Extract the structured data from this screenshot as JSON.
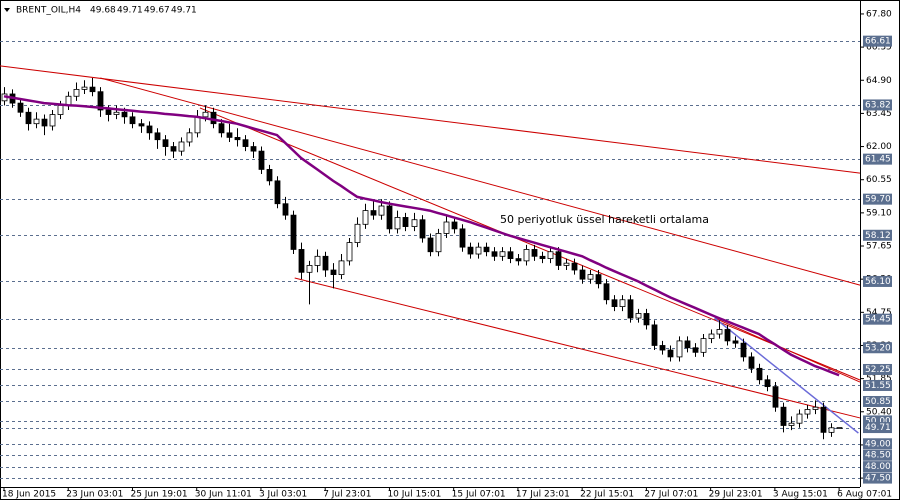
{
  "chart_data": {
    "type": "candlestick",
    "symbol": "BRENT_OIL,H4",
    "annotation": "50 periyotluk üssel hareketli ortalama",
    "ylim": [
      47.11,
      68.41
    ],
    "yticks": [
      {
        "value": 67.8,
        "label": "67.80"
      },
      {
        "value": 66.35,
        "label": "66.35"
      },
      {
        "value": 64.9,
        "label": "64.90"
      },
      {
        "value": 63.45,
        "label": "63.45"
      },
      {
        "value": 62,
        "label": "62.00"
      },
      {
        "value": 60.55,
        "label": "60.55"
      },
      {
        "value": 59.1,
        "label": "59.10"
      },
      {
        "value": 57.65,
        "label": "57.65"
      },
      {
        "value": 56.2,
        "label": "56.20"
      },
      {
        "value": 54.75,
        "label": "54.75"
      },
      {
        "value": 53.3,
        "label": "53.30"
      },
      {
        "value": 51.85,
        "label": "51.85"
      },
      {
        "value": 50.4,
        "label": "50.40"
      },
      {
        "value": 48.95,
        "label": "48.95"
      },
      {
        "value": 47.5,
        "label": "47.50"
      }
    ],
    "levels": [
      {
        "value": 66.61,
        "label": "66.61"
      },
      {
        "value": 63.82,
        "label": "63.82"
      },
      {
        "value": 61.45,
        "label": "61.45"
      },
      {
        "value": 59.7,
        "label": "59.70"
      },
      {
        "value": 58.12,
        "label": "58.12"
      },
      {
        "value": 56.1,
        "label": "56.10"
      },
      {
        "value": 54.45,
        "label": "54.45"
      },
      {
        "value": 53.2,
        "label": "53.20"
      },
      {
        "value": 52.25,
        "label": "52.25"
      },
      {
        "value": 51.55,
        "label": "51.55"
      },
      {
        "value": 50.85,
        "label": "50.85"
      },
      {
        "value": 50,
        "label": "50.00"
      },
      {
        "value": 49.71,
        "label": "49.71"
      },
      {
        "value": 49,
        "label": "49.00"
      },
      {
        "value": 48.5,
        "label": "48.50"
      },
      {
        "value": 48,
        "label": "48.00"
      },
      {
        "value": 47.5,
        "label": "47.50"
      }
    ],
    "level_color": "#5b6f8f",
    "bull_color": "#ffffff",
    "bear_color": "#000000",
    "categories": [
      "18 Jun 2015",
      null,
      null,
      null,
      null,
      null,
      null,
      null,
      "23 Jun 03:01",
      null,
      null,
      null,
      null,
      null,
      null,
      null,
      "25 Jun 19:01",
      null,
      null,
      null,
      null,
      null,
      null,
      null,
      "30 Jun 11:01",
      null,
      null,
      null,
      null,
      null,
      null,
      null,
      "3 Jul 03:01",
      null,
      null,
      null,
      null,
      null,
      null,
      null,
      "7 Jul 23:01",
      null,
      null,
      null,
      null,
      null,
      null,
      null,
      "10 Jul 15:01",
      null,
      null,
      null,
      null,
      null,
      null,
      null,
      "15 Jul 07:01",
      null,
      null,
      null,
      null,
      null,
      null,
      null,
      "17 Jul 23:01",
      null,
      null,
      null,
      null,
      null,
      null,
      null,
      "22 Jul 15:01",
      null,
      null,
      null,
      null,
      null,
      null,
      null,
      "27 Jul 07:01",
      null,
      null,
      null,
      null,
      null,
      null,
      null,
      "29 Jul 23:01",
      null,
      null,
      null,
      null,
      null,
      null,
      null,
      "3 Aug 15:01",
      null,
      null,
      null,
      null,
      null,
      null,
      null,
      "6 Aug 07:01"
    ],
    "ohlc": [
      [
        64.0,
        64.6,
        63.8,
        64.3
      ],
      [
        64.3,
        64.5,
        63.7,
        63.9
      ],
      [
        63.9,
        64.1,
        63.3,
        63.5
      ],
      [
        63.5,
        63.7,
        62.7,
        63.0
      ],
      [
        63.0,
        63.5,
        62.8,
        63.2
      ],
      [
        63.2,
        63.4,
        62.5,
        62.9
      ],
      [
        62.9,
        63.6,
        62.7,
        63.4
      ],
      [
        63.4,
        64.0,
        63.2,
        63.8
      ],
      [
        63.8,
        64.4,
        63.6,
        64.2
      ],
      [
        64.2,
        64.8,
        64.0,
        64.5
      ],
      [
        64.5,
        64.9,
        64.3,
        64.6
      ],
      [
        64.6,
        65.0,
        64.2,
        64.4
      ],
      [
        64.4,
        64.6,
        63.3,
        63.6
      ],
      [
        63.6,
        63.8,
        63.1,
        63.4
      ],
      [
        63.4,
        63.8,
        63.2,
        63.5
      ],
      [
        63.5,
        63.7,
        63.0,
        63.3
      ],
      [
        63.3,
        63.5,
        62.8,
        63.0
      ],
      [
        63.0,
        63.2,
        62.6,
        62.9
      ],
      [
        62.9,
        63.1,
        62.3,
        62.6
      ],
      [
        62.6,
        62.8,
        61.9,
        62.3
      ],
      [
        62.3,
        62.5,
        61.6,
        62.0
      ],
      [
        62.0,
        62.2,
        61.5,
        61.8
      ],
      [
        61.8,
        62.4,
        61.6,
        62.2
      ],
      [
        62.2,
        62.8,
        62.0,
        62.6
      ],
      [
        62.6,
        63.6,
        62.4,
        63.3
      ],
      [
        63.3,
        63.8,
        63.1,
        63.5
      ],
      [
        63.5,
        63.7,
        62.8,
        63.0
      ],
      [
        63.0,
        63.2,
        62.4,
        62.6
      ],
      [
        62.6,
        63.0,
        62.2,
        62.4
      ],
      [
        62.4,
        62.8,
        62.0,
        62.3
      ],
      [
        62.3,
        62.5,
        61.8,
        62.0
      ],
      [
        62.0,
        62.2,
        61.5,
        61.8
      ],
      [
        61.8,
        62.0,
        60.8,
        61.0
      ],
      [
        61.0,
        61.2,
        60.3,
        60.5
      ],
      [
        60.5,
        60.7,
        59.3,
        59.5
      ],
      [
        59.5,
        59.8,
        58.8,
        59.0
      ],
      [
        59.0,
        59.2,
        57.3,
        57.5
      ],
      [
        57.5,
        57.8,
        56.2,
        56.5
      ],
      [
        56.5,
        57.0,
        55.1,
        56.8
      ],
      [
        56.8,
        57.5,
        56.5,
        57.2
      ],
      [
        57.2,
        57.4,
        56.3,
        56.6
      ],
      [
        56.6,
        56.9,
        55.8,
        56.4
      ],
      [
        56.4,
        57.3,
        56.2,
        57.0
      ],
      [
        57.0,
        58.0,
        56.8,
        57.8
      ],
      [
        57.8,
        58.9,
        57.6,
        58.6
      ],
      [
        58.6,
        59.5,
        58.4,
        59.2
      ],
      [
        59.2,
        59.6,
        58.8,
        59.0
      ],
      [
        59.0,
        59.7,
        58.8,
        59.4
      ],
      [
        59.4,
        59.6,
        58.2,
        58.4
      ],
      [
        58.4,
        59.2,
        58.2,
        58.9
      ],
      [
        58.9,
        59.1,
        58.3,
        58.5
      ],
      [
        58.5,
        59.1,
        58.3,
        58.8
      ],
      [
        58.8,
        59.0,
        57.8,
        58.0
      ],
      [
        58.0,
        58.2,
        57.2,
        57.4
      ],
      [
        57.4,
        58.4,
        57.2,
        58.2
      ],
      [
        58.2,
        59.0,
        58.0,
        58.7
      ],
      [
        58.7,
        58.9,
        58.2,
        58.4
      ],
      [
        58.4,
        58.6,
        57.4,
        57.6
      ],
      [
        57.6,
        57.8,
        57.1,
        57.3
      ],
      [
        57.3,
        57.8,
        57.1,
        57.6
      ],
      [
        57.6,
        57.8,
        57.2,
        57.4
      ],
      [
        57.4,
        57.6,
        57.0,
        57.2
      ],
      [
        57.2,
        57.6,
        57.0,
        57.4
      ],
      [
        57.4,
        57.6,
        56.9,
        57.1
      ],
      [
        57.1,
        57.3,
        56.8,
        57.0
      ],
      [
        57.0,
        57.7,
        56.8,
        57.5
      ],
      [
        57.5,
        57.7,
        57.0,
        57.2
      ],
      [
        57.2,
        57.4,
        56.9,
        57.1
      ],
      [
        57.1,
        57.6,
        56.9,
        57.4
      ],
      [
        57.4,
        57.6,
        56.6,
        56.8
      ],
      [
        56.8,
        57.1,
        56.6,
        56.9
      ],
      [
        56.9,
        57.1,
        56.4,
        56.6
      ],
      [
        56.6,
        56.8,
        56.0,
        56.2
      ],
      [
        56.2,
        56.6,
        56.0,
        56.4
      ],
      [
        56.4,
        56.6,
        55.8,
        56.0
      ],
      [
        56.0,
        56.2,
        55.1,
        55.3
      ],
      [
        55.3,
        55.5,
        54.8,
        55.0
      ],
      [
        55.0,
        55.5,
        54.8,
        55.3
      ],
      [
        55.3,
        55.5,
        54.3,
        54.5
      ],
      [
        54.5,
        54.9,
        54.3,
        54.7
      ],
      [
        54.7,
        54.9,
        54.0,
        54.2
      ],
      [
        54.2,
        54.4,
        53.1,
        53.3
      ],
      [
        53.3,
        53.5,
        52.9,
        53.1
      ],
      [
        53.1,
        53.3,
        52.6,
        52.8
      ],
      [
        52.8,
        53.7,
        52.6,
        53.5
      ],
      [
        53.5,
        53.7,
        53.0,
        53.2
      ],
      [
        53.2,
        53.4,
        52.8,
        53.0
      ],
      [
        53.0,
        53.8,
        52.8,
        53.6
      ],
      [
        53.6,
        54.0,
        53.4,
        53.8
      ],
      [
        53.8,
        54.4,
        53.6,
        54.0
      ],
      [
        54.0,
        54.2,
        53.3,
        53.5
      ],
      [
        53.5,
        53.7,
        53.2,
        53.4
      ],
      [
        53.4,
        53.6,
        52.6,
        52.8
      ],
      [
        52.8,
        53.0,
        52.1,
        52.3
      ],
      [
        52.3,
        52.5,
        51.6,
        51.8
      ],
      [
        51.8,
        52.0,
        51.3,
        51.5
      ],
      [
        51.5,
        51.7,
        50.4,
        50.6
      ],
      [
        50.6,
        50.8,
        49.5,
        49.8
      ],
      [
        49.8,
        50.2,
        49.6,
        49.9
      ],
      [
        49.9,
        50.5,
        49.7,
        50.3
      ],
      [
        50.3,
        50.7,
        50.1,
        50.5
      ],
      [
        50.5,
        50.9,
        50.3,
        50.6
      ],
      [
        50.6,
        50.8,
        49.2,
        49.5
      ],
      [
        49.5,
        49.9,
        49.3,
        49.7
      ],
      [
        49.68,
        49.71,
        49.67,
        49.71
      ]
    ],
    "ema": {
      "color": "#800080",
      "values": [
        64.2,
        64.14,
        64.08,
        64.02,
        63.96,
        63.9,
        63.87,
        63.84,
        63.81,
        63.79,
        63.76,
        63.73,
        63.7,
        63.67,
        63.63,
        63.6,
        63.57,
        63.53,
        63.5,
        63.47,
        63.43,
        63.4,
        63.37,
        63.33,
        63.3,
        63.24,
        63.18,
        63.12,
        63.06,
        63.0,
        62.9,
        62.8,
        62.7,
        62.6,
        62.5,
        62.17,
        61.83,
        61.5,
        61.25,
        61.0,
        60.75,
        60.5,
        60.27,
        60.03,
        59.8,
        59.72,
        59.65,
        59.57,
        59.5,
        59.44,
        59.38,
        59.32,
        59.26,
        59.2,
        59.1,
        59.0,
        58.9,
        58.8,
        58.7,
        58.58,
        58.46,
        58.34,
        58.22,
        58.1,
        58.0,
        57.9,
        57.8,
        57.7,
        57.6,
        57.5,
        57.4,
        57.3,
        57.2,
        57.03,
        56.87,
        56.7,
        56.55,
        56.4,
        56.25,
        56.1,
        55.92,
        55.75,
        55.57,
        55.4,
        55.25,
        55.1,
        54.95,
        54.8,
        54.65,
        54.5,
        54.36,
        54.22,
        54.08,
        53.94,
        53.8,
        53.57,
        53.35,
        53.12,
        52.9,
        52.73,
        52.57,
        52.4,
        52.27,
        52.13,
        52.0
      ]
    },
    "trendlines": [
      {
        "color": "#cc0000",
        "x": [
          -0.5,
          106.6
        ],
        "y": [
          65.53,
          60.84
        ]
      },
      {
        "color": "#cc0000",
        "x": [
          12,
          106.6
        ],
        "y": [
          65.0,
          55.94
        ]
      },
      {
        "color": "#cc0000",
        "x": [
          24.4,
          106.6
        ],
        "y": [
          63.69,
          51.79
        ]
      },
      {
        "color": "#cc0000",
        "x": [
          36.2,
          106.6
        ],
        "y": [
          56.25,
          50.13
        ]
      },
      {
        "color": "#cc0000",
        "x": [
          88.5,
          106.6
        ],
        "y": [
          54.5,
          51.7
        ]
      },
      {
        "color": "#6a6ad8",
        "x": [
          88.5,
          106.4
        ],
        "y": [
          54.5,
          49.47
        ]
      }
    ]
  }
}
